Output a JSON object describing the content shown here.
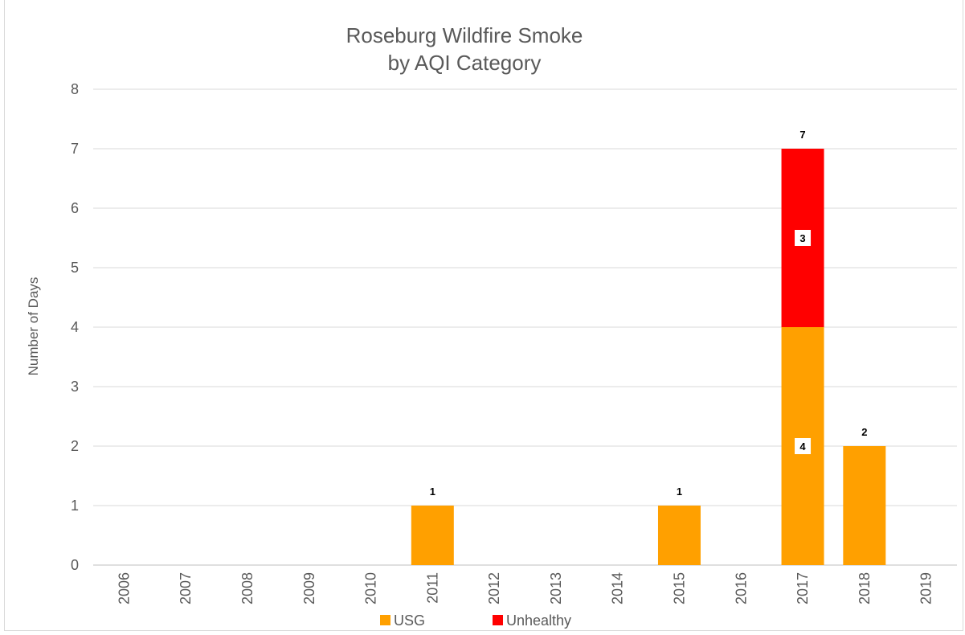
{
  "chart_data": {
    "type": "bar",
    "stacked": true,
    "title": "Roseburg Wildfire Smoke",
    "subtitle": "by AQI Category",
    "xlabel": "",
    "ylabel": "Number of Days",
    "ylim": [
      0,
      8
    ],
    "yticks": [
      "0",
      "1",
      "2",
      "3",
      "4",
      "5",
      "6",
      "7",
      "8"
    ],
    "grid": true,
    "legend_position": "bottom",
    "categories": [
      "2006",
      "2007",
      "2008",
      "2009",
      "2010",
      "2011",
      "2012",
      "2013",
      "2014",
      "2015",
      "2016",
      "2017",
      "2018",
      "2019"
    ],
    "series": [
      {
        "name": "USG",
        "color": "#ffa000",
        "values": [
          0,
          0,
          0,
          0,
          0,
          1,
          0,
          0,
          0,
          1,
          0,
          4,
          2,
          0
        ]
      },
      {
        "name": "Unhealthy",
        "color": "#ff0000",
        "values": [
          0,
          0,
          0,
          0,
          0,
          0,
          0,
          0,
          0,
          0,
          0,
          3,
          0,
          0
        ]
      }
    ],
    "totals": [
      0,
      0,
      0,
      0,
      0,
      1,
      0,
      0,
      0,
      1,
      0,
      7,
      2,
      0
    ],
    "segment_labels": [
      {
        "category": "2017",
        "series": "USG",
        "text": "4"
      },
      {
        "category": "2017",
        "series": "Unhealthy",
        "text": "3"
      }
    ]
  }
}
